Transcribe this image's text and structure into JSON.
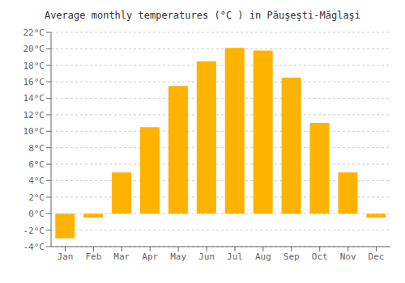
{
  "chart_data": {
    "type": "bar",
    "title": "Average monthly temperatures (°C ) in Păuşeşti-Măglaşi",
    "categories": [
      "Jan",
      "Feb",
      "Mar",
      "Apr",
      "May",
      "Jun",
      "Jul",
      "Aug",
      "Sep",
      "Oct",
      "Nov",
      "Dec"
    ],
    "values": [
      -3.0,
      -0.5,
      5.0,
      10.5,
      15.5,
      18.5,
      20.1,
      19.8,
      16.5,
      11.0,
      5.0,
      -0.5
    ],
    "color": "#FFB300",
    "ylim": [
      -4,
      22
    ],
    "yticks": [
      {
        "value": -4,
        "label": "-4°C"
      },
      {
        "value": -2,
        "label": "-2°C"
      },
      {
        "value": 0,
        "label": "0°C"
      },
      {
        "value": 2,
        "label": "2°C"
      },
      {
        "value": 4,
        "label": "4°C"
      },
      {
        "value": 6,
        "label": "6°C"
      },
      {
        "value": 8,
        "label": "8°C"
      },
      {
        "value": 10,
        "label": "10°C"
      },
      {
        "value": 12,
        "label": "12°C"
      },
      {
        "value": 14,
        "label": "14°C"
      },
      {
        "value": 16,
        "label": "16°C"
      },
      {
        "value": 18,
        "label": "18°C"
      },
      {
        "value": 20,
        "label": "20°C"
      },
      {
        "value": 22,
        "label": "22°C"
      }
    ],
    "grid": true
  }
}
